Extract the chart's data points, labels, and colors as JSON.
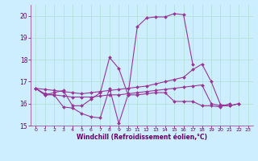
{
  "background_color": "#cceeff",
  "grid_color": "#b0ddd0",
  "line_color": "#993399",
  "xlabel": "Windchill (Refroidissement éolien,°C)",
  "xlim": [
    -0.5,
    23.5
  ],
  "ylim": [
    15,
    20.5
  ],
  "yticks": [
    15,
    16,
    17,
    18,
    19,
    20
  ],
  "xticks": [
    0,
    1,
    2,
    3,
    4,
    5,
    6,
    7,
    8,
    9,
    10,
    11,
    12,
    13,
    14,
    15,
    16,
    17,
    18,
    19,
    20,
    21,
    22,
    23
  ],
  "series1_x": [
    0,
    1,
    2,
    3,
    4,
    5,
    6,
    7,
    8,
    9,
    10,
    11,
    12,
    13,
    14,
    15,
    16,
    17
  ],
  "series1_y": [
    16.7,
    16.4,
    16.5,
    16.6,
    15.9,
    15.9,
    16.2,
    16.5,
    18.1,
    17.6,
    16.4,
    19.5,
    19.9,
    19.95,
    19.95,
    20.1,
    20.05,
    17.8
  ],
  "series2_x": [
    0,
    1,
    2,
    3,
    4,
    5,
    6,
    7,
    8,
    9,
    10,
    11,
    12,
    13,
    14,
    15,
    16,
    17,
    18,
    19,
    20,
    21,
    22
  ],
  "series2_y": [
    16.7,
    16.65,
    16.6,
    16.55,
    16.5,
    16.45,
    16.5,
    16.55,
    16.6,
    16.65,
    16.7,
    16.75,
    16.8,
    16.9,
    17.0,
    17.1,
    17.2,
    17.55,
    17.8,
    17.0,
    15.95,
    15.9,
    16.0
  ],
  "series3_x": [
    0,
    1,
    2,
    3,
    4,
    5,
    6,
    7,
    8,
    9,
    10,
    11,
    12,
    13,
    14,
    15,
    16,
    17,
    18,
    19,
    20,
    21
  ],
  "series3_y": [
    16.7,
    16.4,
    16.4,
    15.85,
    15.8,
    15.55,
    15.4,
    15.35,
    16.7,
    15.1,
    16.4,
    16.4,
    16.45,
    16.5,
    16.5,
    16.1,
    16.1,
    16.1,
    15.9,
    15.9,
    15.85,
    16.0
  ],
  "series4_x": [
    0,
    1,
    2,
    3,
    4,
    5,
    6,
    7,
    8,
    9,
    10,
    11,
    12,
    13,
    14,
    15,
    16,
    17,
    18,
    19,
    20,
    21,
    22
  ],
  "series4_y": [
    16.7,
    16.45,
    16.4,
    16.35,
    16.3,
    16.3,
    16.3,
    16.35,
    16.4,
    16.4,
    16.45,
    16.5,
    16.55,
    16.6,
    16.65,
    16.7,
    16.75,
    16.8,
    16.85,
    16.0,
    15.9,
    15.9,
    16.0
  ]
}
